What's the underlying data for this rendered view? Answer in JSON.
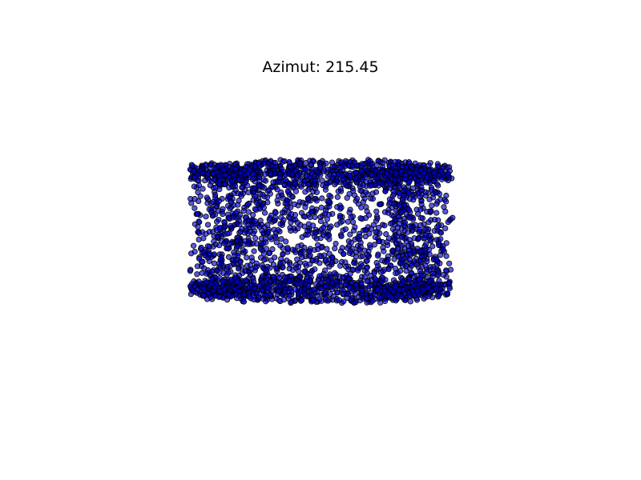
{
  "chart_data": {
    "type": "scatter",
    "projection": "3d",
    "title": "Azimut: 215.45",
    "xlabel": "",
    "ylabel": "",
    "grid": false,
    "axes_visible": false,
    "legend": "none",
    "marker": "circle",
    "marker_face_color": "#0000cc",
    "marker_edge_color": "#000000",
    "marker_alpha": 0.65,
    "series": [
      {
        "name": "",
        "shape": "cylindrical shell viewed from the side",
        "point_count": 3000,
        "color": "#0000cc"
      }
    ]
  }
}
